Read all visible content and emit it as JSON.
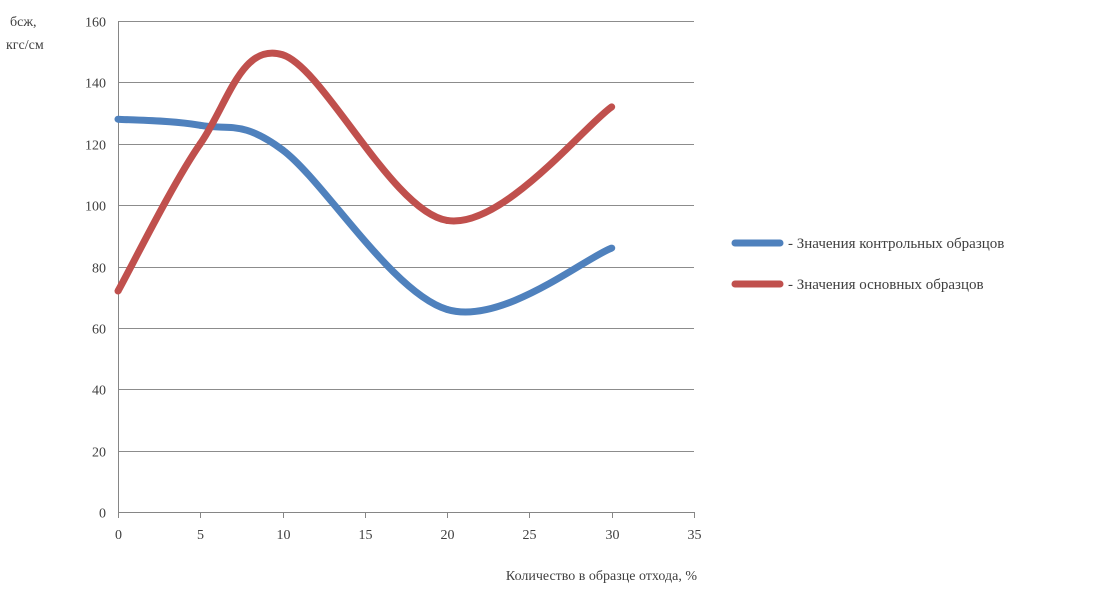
{
  "chart_data": {
    "type": "line",
    "smooth": true,
    "title": "",
    "ylabel_lines": [
      "бсж,",
      "кгс/см"
    ],
    "xlabel": "Количество в образце отхода, %",
    "xlim": [
      0,
      35
    ],
    "ylim": [
      0,
      160
    ],
    "x_ticks": [
      0,
      5,
      10,
      15,
      20,
      25,
      30,
      35
    ],
    "y_ticks": [
      0,
      20,
      40,
      60,
      80,
      100,
      120,
      140,
      160
    ],
    "grid": "horizontal",
    "legend_position": "right",
    "series": [
      {
        "name": "- Значения контрольных образцов",
        "color": "#4f81bd",
        "x": [
          0,
          5,
          10,
          20,
          30
        ],
        "y": [
          128,
          126,
          118,
          66,
          86
        ]
      },
      {
        "name": "- Значения основных образцов",
        "color": "#c0504d",
        "x": [
          0,
          5,
          10,
          20,
          30
        ],
        "y": [
          72,
          120,
          149,
          95,
          132
        ]
      }
    ]
  }
}
